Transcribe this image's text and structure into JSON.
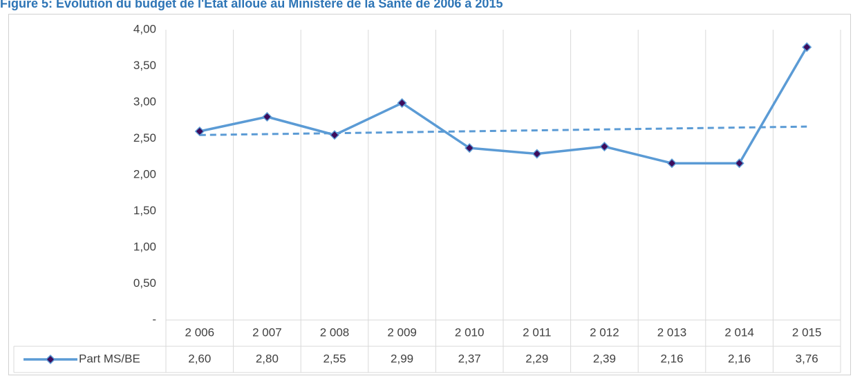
{
  "chart_data": {
    "type": "line",
    "title": "Figure 5: Evolution du budget de l'Etat alloué au Ministère de la Santé de 2006 à 2015",
    "categories": [
      "2 006",
      "2 007",
      "2 008",
      "2 009",
      "2 010",
      "2 011",
      "2 012",
      "2 013",
      "2 014",
      "2 015"
    ],
    "series": [
      {
        "name": "Part MS/BE",
        "color": "#5b9bd5",
        "marker_color": "#3d0c5c",
        "values": [
          2.6,
          2.8,
          2.55,
          2.99,
          2.37,
          2.29,
          2.39,
          2.16,
          2.16,
          3.76
        ],
        "value_labels": [
          "2,60",
          "2,80",
          "2,55",
          "2,99",
          "2,37",
          "2,29",
          "2,39",
          "2,16",
          "2,16",
          "3,76"
        ]
      }
    ],
    "trendline": "linear",
    "ylim": [
      0,
      4
    ],
    "yticks": [
      {
        "value": 0,
        "label": "-"
      },
      {
        "value": 0.5,
        "label": "0,50"
      },
      {
        "value": 1,
        "label": "1,00"
      },
      {
        "value": 1.5,
        "label": "1,50"
      },
      {
        "value": 2,
        "label": "2,00"
      },
      {
        "value": 2.5,
        "label": "2,50"
      },
      {
        "value": 3,
        "label": "3,00"
      },
      {
        "value": 3.5,
        "label": "3,50"
      },
      {
        "value": 4,
        "label": "4,00"
      }
    ]
  }
}
